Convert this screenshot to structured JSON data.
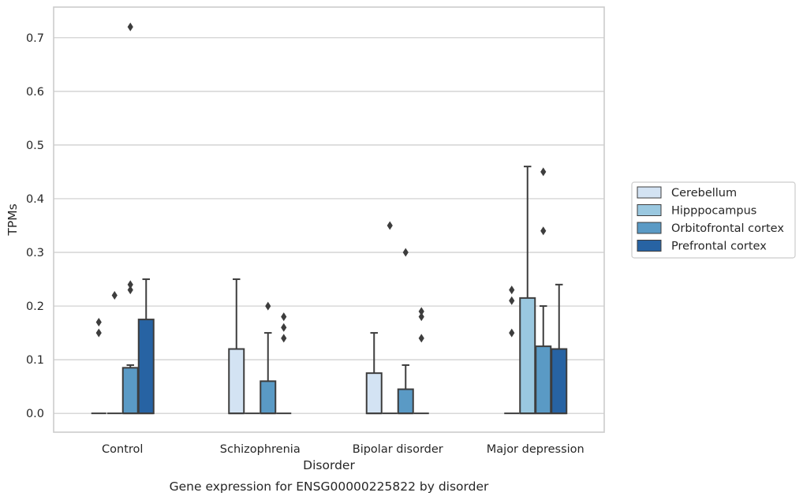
{
  "chart_data": {
    "type": "bar",
    "subtype": "boxplot",
    "title": "",
    "caption": "Gene expression for ENSG00000225822 by disorder",
    "xlabel": "Disorder",
    "ylabel": "TPMs",
    "ylim": [
      -0.035,
      0.757
    ],
    "yticks": [
      0.0,
      0.1,
      0.2,
      0.3,
      0.4,
      0.5,
      0.6,
      0.7
    ],
    "ytick_labels": [
      "0.0",
      "0.1",
      "0.2",
      "0.3",
      "0.4",
      "0.5",
      "0.6",
      "0.7"
    ],
    "grid": "horizontal",
    "legend_position": "right",
    "categories": [
      "Control",
      "Schizophrenia",
      "Bipolar disorder",
      "Major depression"
    ],
    "series": [
      {
        "name": "Cerebellum",
        "color": "#d3e3f3",
        "boxes": [
          {
            "q1": 0,
            "q3": 0,
            "median": 0,
            "whisker_high": 0,
            "outliers": [
              0.15,
              0.17
            ]
          },
          {
            "q1": 0,
            "q3": 0.12,
            "median": 0,
            "whisker_high": 0.25,
            "outliers": []
          },
          {
            "q1": 0,
            "q3": 0.075,
            "median": 0,
            "whisker_high": 0.15,
            "outliers": []
          },
          {
            "q1": 0,
            "q3": 0,
            "median": 0,
            "whisker_high": 0,
            "outliers": [
              0.15,
              0.21,
              0.23
            ]
          }
        ]
      },
      {
        "name": "Hipppocampus",
        "color": "#9ac8e0",
        "boxes": [
          {
            "q1": 0,
            "q3": 0,
            "median": 0,
            "whisker_high": 0,
            "outliers": [
              0.22
            ]
          },
          {
            "q1": 0,
            "q3": 0,
            "median": 0,
            "whisker_high": 0,
            "outliers": []
          },
          {
            "q1": 0,
            "q3": 0,
            "median": 0,
            "whisker_high": 0,
            "outliers": [
              0.35
            ]
          },
          {
            "q1": 0,
            "q3": 0.215,
            "median": 0,
            "whisker_high": 0.46,
            "outliers": []
          }
        ]
      },
      {
        "name": "Orbitofrontal cortex",
        "color": "#5a9ac5",
        "boxes": [
          {
            "q1": 0,
            "q3": 0.085,
            "median": 0,
            "whisker_high": 0.09,
            "outliers": [
              0.23,
              0.24,
              0.72
            ]
          },
          {
            "q1": 0,
            "q3": 0.06,
            "median": 0,
            "whisker_high": 0.15,
            "outliers": [
              0.2
            ]
          },
          {
            "q1": 0,
            "q3": 0.045,
            "median": 0,
            "whisker_high": 0.09,
            "outliers": [
              0.3
            ]
          },
          {
            "q1": 0,
            "q3": 0.125,
            "median": 0,
            "whisker_high": 0.2,
            "outliers": [
              0.34,
              0.45
            ]
          }
        ]
      },
      {
        "name": "Prefrontal cortex",
        "color": "#2763a3",
        "boxes": [
          {
            "q1": 0,
            "q3": 0.175,
            "median": 0,
            "whisker_high": 0.25,
            "outliers": []
          },
          {
            "q1": 0,
            "q3": 0,
            "median": 0,
            "whisker_high": 0,
            "outliers": [
              0.14,
              0.16,
              0.18
            ]
          },
          {
            "q1": 0,
            "q3": 0,
            "median": 0,
            "whisker_high": 0,
            "outliers": [
              0.14,
              0.18,
              0.19
            ]
          },
          {
            "q1": 0,
            "q3": 0.12,
            "median": 0,
            "whisker_high": 0.24,
            "outliers": []
          }
        ]
      }
    ]
  }
}
